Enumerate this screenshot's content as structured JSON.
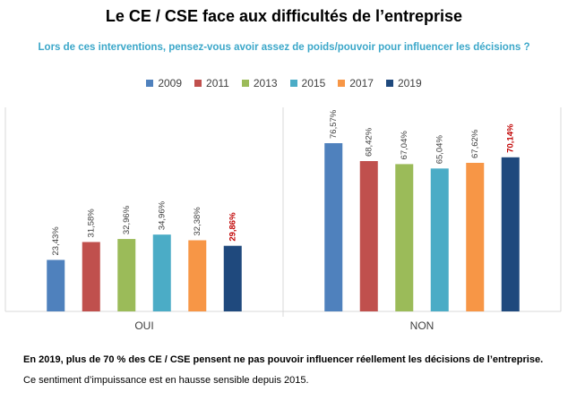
{
  "header": {
    "title": "Le CE / CSE face aux difficultés de l’entreprise",
    "subtitle": "Lors de ces interventions, pensez-vous avoir assez de poids/pouvoir pour influencer les décisions ?"
  },
  "colors": {
    "subtitle": "#3BA7C9",
    "highlight_label": "#C00000",
    "series": [
      "#4F81BD",
      "#C0504D",
      "#9BBB59",
      "#4BACC6",
      "#F79646",
      "#1F497D"
    ]
  },
  "chart_data": {
    "type": "bar",
    "categories": [
      "OUI",
      "NON"
    ],
    "series": [
      {
        "name": "2009",
        "values": [
          23.43,
          76.57
        ],
        "labels": [
          "23,43%",
          "76,57%"
        ]
      },
      {
        "name": "2011",
        "values": [
          31.58,
          68.42
        ],
        "labels": [
          "31,58%",
          "68,42%"
        ]
      },
      {
        "name": "2013",
        "values": [
          32.96,
          67.04
        ],
        "labels": [
          "32,96%",
          "67,04%"
        ]
      },
      {
        "name": "2015",
        "values": [
          34.96,
          65.04
        ],
        "labels": [
          "34,96%",
          "65,04%"
        ]
      },
      {
        "name": "2017",
        "values": [
          32.38,
          67.62
        ],
        "labels": [
          "32,38%",
          "67,62%"
        ]
      },
      {
        "name": "2019",
        "values": [
          29.86,
          70.14
        ],
        "labels": [
          "29,86%",
          "70,14%"
        ]
      }
    ],
    "highlight_series": "2019",
    "ylim": [
      0,
      100
    ],
    "legend_position": "top",
    "grid": false
  },
  "footer": {
    "line1": "En 2019, plus de 70 % des CE / CSE pensent ne pas pouvoir influencer réellement les décisions de l’entreprise.",
    "line2": "Ce sentiment d’impuissance est en hausse sensible depuis 2015."
  }
}
